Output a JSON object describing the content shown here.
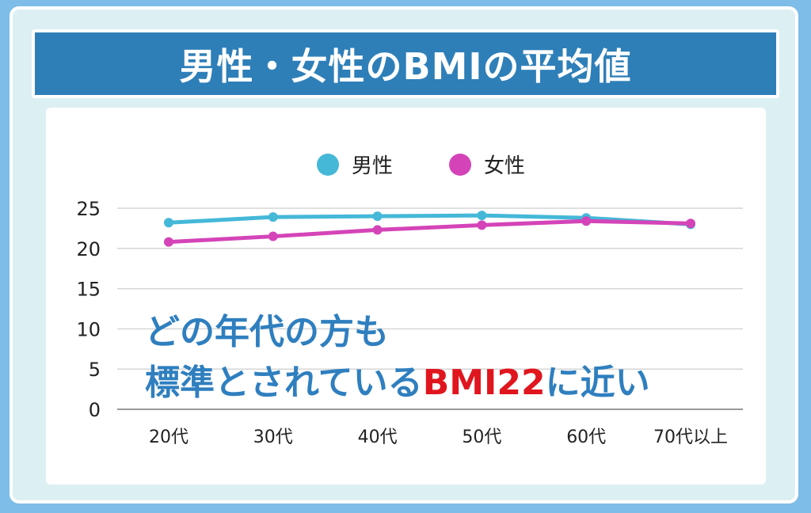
{
  "title": "男性・女性のBMIの平均値",
  "annotation": {
    "line1": "どの年代の方も",
    "line2_prefix": "標準とされている",
    "line2_highlight": "BMI22",
    "line2_suffix": "に近い"
  },
  "colors": {
    "male": "#45b8d8",
    "female": "#d444b8",
    "highlight": "#e0161e",
    "annotation": "#2f7fbf"
  },
  "chart_data": {
    "type": "line",
    "title": "男性・女性のBMIの平均値",
    "categories": [
      "20代",
      "30代",
      "40代",
      "50代",
      "60代",
      "70代以上"
    ],
    "series": [
      {
        "name": "男性",
        "values": [
          23.2,
          23.9,
          24.0,
          24.1,
          23.8,
          23.0
        ]
      },
      {
        "name": "女性",
        "values": [
          20.8,
          21.5,
          22.3,
          22.9,
          23.4,
          23.1
        ]
      }
    ],
    "yticks": [
      "0",
      "5",
      "10",
      "15",
      "20",
      "25"
    ],
    "ylim": [
      0,
      25
    ],
    "legend": "top-center",
    "grid": true
  }
}
